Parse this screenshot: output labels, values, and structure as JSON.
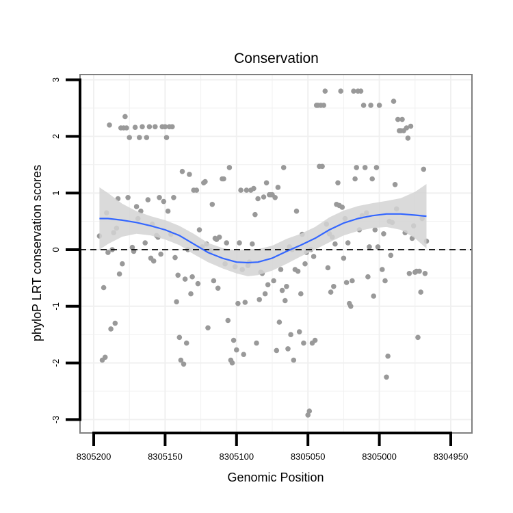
{
  "chart_data": {
    "type": "scatter",
    "title": "Conservation",
    "xlabel": "Genomic Position",
    "ylabel": "phyloP LRT conservation scores",
    "x_reversed": true,
    "xlim": [
      8305207,
      8304943
    ],
    "ylim": [
      -3.2,
      3.1
    ],
    "x_ticks": [
      8305200,
      8305150,
      8305100,
      8305050,
      8305000,
      8304950
    ],
    "x_tick_labels": [
      "8305200",
      "8305150",
      "8305100",
      "8305050",
      "8305000",
      "8304950"
    ],
    "y_ticks": [
      -3,
      -2,
      -1,
      0,
      1,
      2,
      3
    ],
    "y_tick_labels": [
      "-3",
      "-2",
      "-1",
      "0",
      "1",
      "2",
      "3"
    ],
    "reference_line": {
      "y": 0,
      "style": "dashed",
      "color": "#000000"
    },
    "colors": {
      "points": "#999999",
      "smooth": "#3366ff",
      "band": "#d3d3d3",
      "panel_border": "#7f7f7f",
      "grid": "#f0f0f0"
    },
    "series": [
      {
        "name": "scores",
        "points": [
          [
            8305196,
            0.24
          ],
          [
            8305194,
            -1.95
          ],
          [
            8305193,
            -0.67
          ],
          [
            8305192,
            -1.9
          ],
          [
            8305191,
            0.65
          ],
          [
            8305190,
            -0.05
          ],
          [
            8305189,
            2.2
          ],
          [
            8305188,
            -1.4
          ],
          [
            8305187,
            0.0
          ],
          [
            8305186,
            0.3
          ],
          [
            8305185,
            -1.3
          ],
          [
            8305184,
            0.38
          ],
          [
            8305183,
            0.9
          ],
          [
            8305182,
            -0.43
          ],
          [
            8305181,
            2.15
          ],
          [
            8305180,
            -0.25
          ],
          [
            8305179,
            2.15
          ],
          [
            8305178,
            2.35
          ],
          [
            8305177,
            2.15
          ],
          [
            8305176,
            0.92
          ],
          [
            8305175,
            1.98
          ],
          [
            8305173,
            0.04
          ],
          [
            8305172,
            -0.03
          ],
          [
            8305171,
            2.16
          ],
          [
            8305170,
            0.76
          ],
          [
            8305169,
            0.55
          ],
          [
            8305168,
            1.98
          ],
          [
            8305167,
            0.68
          ],
          [
            8305166,
            2.17
          ],
          [
            8305164,
            0.12
          ],
          [
            8305163,
            1.98
          ],
          [
            8305162,
            0.88
          ],
          [
            8305161,
            2.17
          ],
          [
            8305160,
            -0.15
          ],
          [
            8305159,
            0.45
          ],
          [
            8305158,
            -0.2
          ],
          [
            8305157,
            2.17
          ],
          [
            8305156,
            0.25
          ],
          [
            8305155,
            0.22
          ],
          [
            8305154,
            0.92
          ],
          [
            8305153,
            -0.08
          ],
          [
            8305152,
            2.17
          ],
          [
            8305151,
            0.85
          ],
          [
            8305150,
            2.17
          ],
          [
            8305149,
            1.98
          ],
          [
            8305148,
            0.68
          ],
          [
            8305147,
            2.17
          ],
          [
            8305146,
            0.27
          ],
          [
            8305145,
            2.17
          ],
          [
            8305144,
            0.92
          ],
          [
            8305143,
            -0.14
          ],
          [
            8305142,
            -0.92
          ],
          [
            8305141,
            -0.45
          ],
          [
            8305140,
            -1.55
          ],
          [
            8305139,
            -1.95
          ],
          [
            8305138,
            1.38
          ],
          [
            8305137,
            -2.02
          ],
          [
            8305136,
            -0.52
          ],
          [
            8305135,
            -1.65
          ],
          [
            8305134,
            0.0
          ],
          [
            8305133,
            1.33
          ],
          [
            8305132,
            -0.78
          ],
          [
            8305131,
            -0.48
          ],
          [
            8305130,
            1.05
          ],
          [
            8305128,
            1.05
          ],
          [
            8305127,
            -0.6
          ],
          [
            8305126,
            0.35
          ],
          [
            8305124,
            0.05
          ],
          [
            8305123,
            1.18
          ],
          [
            8305122,
            1.2
          ],
          [
            8305121,
            0.1
          ],
          [
            8305120,
            -1.38
          ],
          [
            8305118,
            -0.02
          ],
          [
            8305117,
            0.8
          ],
          [
            8305116,
            -0.55
          ],
          [
            8305115,
            0.2
          ],
          [
            8305114,
            0.18
          ],
          [
            8305113,
            -0.68
          ],
          [
            8305112,
            0.22
          ],
          [
            8305110,
            1.25
          ],
          [
            8305109,
            1.25
          ],
          [
            8305108,
            -0.25
          ],
          [
            8305107,
            0.12
          ],
          [
            8305106,
            -1.25
          ],
          [
            8305105,
            1.45
          ],
          [
            8305104,
            -1.95
          ],
          [
            8305103,
            -2.0
          ],
          [
            8305102,
            -1.6
          ],
          [
            8305101,
            -0.3
          ],
          [
            8305100,
            -1.77
          ],
          [
            8305099,
            -0.95
          ],
          [
            8305098,
            0.12
          ],
          [
            8305097,
            1.05
          ],
          [
            8305096,
            -0.35
          ],
          [
            8305095,
            -1.85
          ],
          [
            8305094,
            -0.93
          ],
          [
            8305093,
            1.05
          ],
          [
            8305092,
            -0.28
          ],
          [
            8305091,
            -0.22
          ],
          [
            8305090,
            1.05
          ],
          [
            8305089,
            0.1
          ],
          [
            8305088,
            1.08
          ],
          [
            8305087,
            0.62
          ],
          [
            8305086,
            -1.65
          ],
          [
            8305085,
            0.9
          ],
          [
            8305084,
            -0.88
          ],
          [
            8305083,
            -0.4
          ],
          [
            8305082,
            -0.42
          ],
          [
            8305081,
            0.93
          ],
          [
            8305080,
            -0.78
          ],
          [
            8305079,
            1.18
          ],
          [
            8305078,
            -0.62
          ],
          [
            8305077,
            0.97
          ],
          [
            8305076,
            0.97
          ],
          [
            8305075,
            0.97
          ],
          [
            8305074,
            -0.55
          ],
          [
            8305073,
            0.92
          ],
          [
            8305072,
            -1.78
          ],
          [
            8305071,
            1.1
          ],
          [
            8305070,
            -1.28
          ],
          [
            8305069,
            -0.35
          ],
          [
            8305068,
            -0.72
          ],
          [
            8305067,
            1.45
          ],
          [
            8305066,
            -0.9
          ],
          [
            8305065,
            -0.65
          ],
          [
            8305064,
            -1.75
          ],
          [
            8305063,
            0.05
          ],
          [
            8305062,
            -1.5
          ],
          [
            8305061,
            0.0
          ],
          [
            8305060,
            -1.95
          ],
          [
            8305059,
            -0.35
          ],
          [
            8305058,
            0.68
          ],
          [
            8305057,
            -0.38
          ],
          [
            8305056,
            -1.45
          ],
          [
            8305055,
            -0.78
          ],
          [
            8305054,
            0.27
          ],
          [
            8305053,
            -1.65
          ],
          [
            8305052,
            -0.25
          ],
          [
            8305051,
            -0.05
          ],
          [
            8305050,
            -2.92
          ],
          [
            8305049,
            -2.85
          ],
          [
            8305048,
            0.0
          ],
          [
            8305047,
            -1.65
          ],
          [
            8305046,
            -0.12
          ],
          [
            8305045,
            -1.6
          ],
          [
            8305044,
            2.55
          ],
          [
            8305043,
            2.55
          ],
          [
            8305042,
            1.47
          ],
          [
            8305041,
            2.55
          ],
          [
            8305040,
            1.47
          ],
          [
            8305039,
            2.55
          ],
          [
            8305038,
            2.8
          ],
          [
            8305037,
            0.45
          ],
          [
            8305036,
            -0.32
          ],
          [
            8305035,
            0.28
          ],
          [
            8305034,
            -0.75
          ],
          [
            8305033,
            0.22
          ],
          [
            8305032,
            -0.65
          ],
          [
            8305031,
            0.1
          ],
          [
            8305030,
            0.8
          ],
          [
            8305029,
            1.18
          ],
          [
            8305028,
            0.78
          ],
          [
            8305027,
            2.8
          ],
          [
            8305026,
            0.75
          ],
          [
            8305025,
            -0.15
          ],
          [
            8305024,
            0.55
          ],
          [
            8305023,
            -0.58
          ],
          [
            8305022,
            0.12
          ],
          [
            8305021,
            -0.95
          ],
          [
            8305020,
            -1.0
          ],
          [
            8305019,
            -0.55
          ],
          [
            8305018,
            2.8
          ],
          [
            8305017,
            1.25
          ],
          [
            8305016,
            1.45
          ],
          [
            8305015,
            2.8
          ],
          [
            8305014,
            0.35
          ],
          [
            8305013,
            2.8
          ],
          [
            8305012,
            0.6
          ],
          [
            8305011,
            2.55
          ],
          [
            8305010,
            1.45
          ],
          [
            8305009,
            0.65
          ],
          [
            8305008,
            -0.48
          ],
          [
            8305007,
            0.05
          ],
          [
            8305006,
            2.55
          ],
          [
            8305005,
            1.25
          ],
          [
            8305004,
            -0.82
          ],
          [
            8305003,
            0.35
          ],
          [
            8305002,
            1.45
          ],
          [
            8305001,
            0.05
          ],
          [
            8305000,
            2.55
          ],
          [
            8304998,
            -0.35
          ],
          [
            8304997,
            0.28
          ],
          [
            8304996,
            -0.55
          ],
          [
            8304995,
            -2.25
          ],
          [
            8304994,
            -1.88
          ],
          [
            8304993,
            0.5
          ],
          [
            8304992,
            -0.1
          ],
          [
            8304991,
            0.48
          ],
          [
            8304990,
            2.62
          ],
          [
            8304989,
            1.15
          ],
          [
            8304988,
            0.72
          ],
          [
            8304987,
            2.3
          ],
          [
            8304986,
            2.1
          ],
          [
            8304985,
            2.1
          ],
          [
            8304984,
            2.3
          ],
          [
            8304983,
            2.1
          ],
          [
            8304982,
            0.3
          ],
          [
            8304981,
            2.15
          ],
          [
            8304980,
            1.97
          ],
          [
            8304979,
            -0.42
          ],
          [
            8304978,
            2.18
          ],
          [
            8304977,
            0.2
          ],
          [
            8304976,
            0.42
          ],
          [
            8304975,
            -0.4
          ],
          [
            8304974,
            -0.38
          ],
          [
            8304973,
            -1.55
          ],
          [
            8304972,
            -0.38
          ],
          [
            8304971,
            -0.75
          ],
          [
            8304970,
            0.55
          ],
          [
            8304969,
            1.42
          ],
          [
            8304968,
            -0.42
          ],
          [
            8304967,
            0.15
          ]
        ]
      },
      {
        "name": "loess fit",
        "curve": [
          [
            8305196,
            0.55
          ],
          [
            8305190,
            0.55
          ],
          [
            8305180,
            0.52
          ],
          [
            8305170,
            0.48
          ],
          [
            8305160,
            0.42
          ],
          [
            8305150,
            0.35
          ],
          [
            8305140,
            0.25
          ],
          [
            8305130,
            0.1
          ],
          [
            8305120,
            -0.05
          ],
          [
            8305110,
            -0.15
          ],
          [
            8305100,
            -0.22
          ],
          [
            8305092,
            -0.23
          ],
          [
            8305085,
            -0.22
          ],
          [
            8305075,
            -0.15
          ],
          [
            8305065,
            -0.03
          ],
          [
            8305055,
            0.08
          ],
          [
            8305045,
            0.2
          ],
          [
            8305035,
            0.35
          ],
          [
            8305025,
            0.47
          ],
          [
            8305015,
            0.55
          ],
          [
            8305005,
            0.6
          ],
          [
            8304995,
            0.63
          ],
          [
            8304985,
            0.63
          ],
          [
            8304975,
            0.61
          ],
          [
            8304967,
            0.59
          ]
        ],
        "lower": [
          [
            8305196,
            0.0
          ],
          [
            8305190,
            0.1
          ],
          [
            8305180,
            0.23
          ],
          [
            8305170,
            0.28
          ],
          [
            8305160,
            0.25
          ],
          [
            8305150,
            0.18
          ],
          [
            8305140,
            0.08
          ],
          [
            8305130,
            -0.08
          ],
          [
            8305120,
            -0.22
          ],
          [
            8305110,
            -0.33
          ],
          [
            8305100,
            -0.42
          ],
          [
            8305092,
            -0.47
          ],
          [
            8305085,
            -0.45
          ],
          [
            8305075,
            -0.37
          ],
          [
            8305065,
            -0.25
          ],
          [
            8305055,
            -0.12
          ],
          [
            8305045,
            0.0
          ],
          [
            8305035,
            0.13
          ],
          [
            8305025,
            0.25
          ],
          [
            8305015,
            0.33
          ],
          [
            8305005,
            0.38
          ],
          [
            8304995,
            0.4
          ],
          [
            8304985,
            0.35
          ],
          [
            8304975,
            0.2
          ],
          [
            8304967,
            0.02
          ]
        ],
        "upper": [
          [
            8305196,
            1.1
          ],
          [
            8305190,
            1.0
          ],
          [
            8305180,
            0.81
          ],
          [
            8305170,
            0.68
          ],
          [
            8305160,
            0.59
          ],
          [
            8305150,
            0.52
          ],
          [
            8305140,
            0.42
          ],
          [
            8305130,
            0.28
          ],
          [
            8305120,
            0.12
          ],
          [
            8305110,
            0.03
          ],
          [
            8305100,
            -0.02
          ],
          [
            8305092,
            0.01
          ],
          [
            8305085,
            0.01
          ],
          [
            8305075,
            0.07
          ],
          [
            8305065,
            0.19
          ],
          [
            8305055,
            0.28
          ],
          [
            8305045,
            0.4
          ],
          [
            8305035,
            0.57
          ],
          [
            8305025,
            0.69
          ],
          [
            8305015,
            0.77
          ],
          [
            8305005,
            0.82
          ],
          [
            8304995,
            0.86
          ],
          [
            8304985,
            0.91
          ],
          [
            8304975,
            1.02
          ],
          [
            8304967,
            1.16
          ]
        ]
      }
    ]
  }
}
